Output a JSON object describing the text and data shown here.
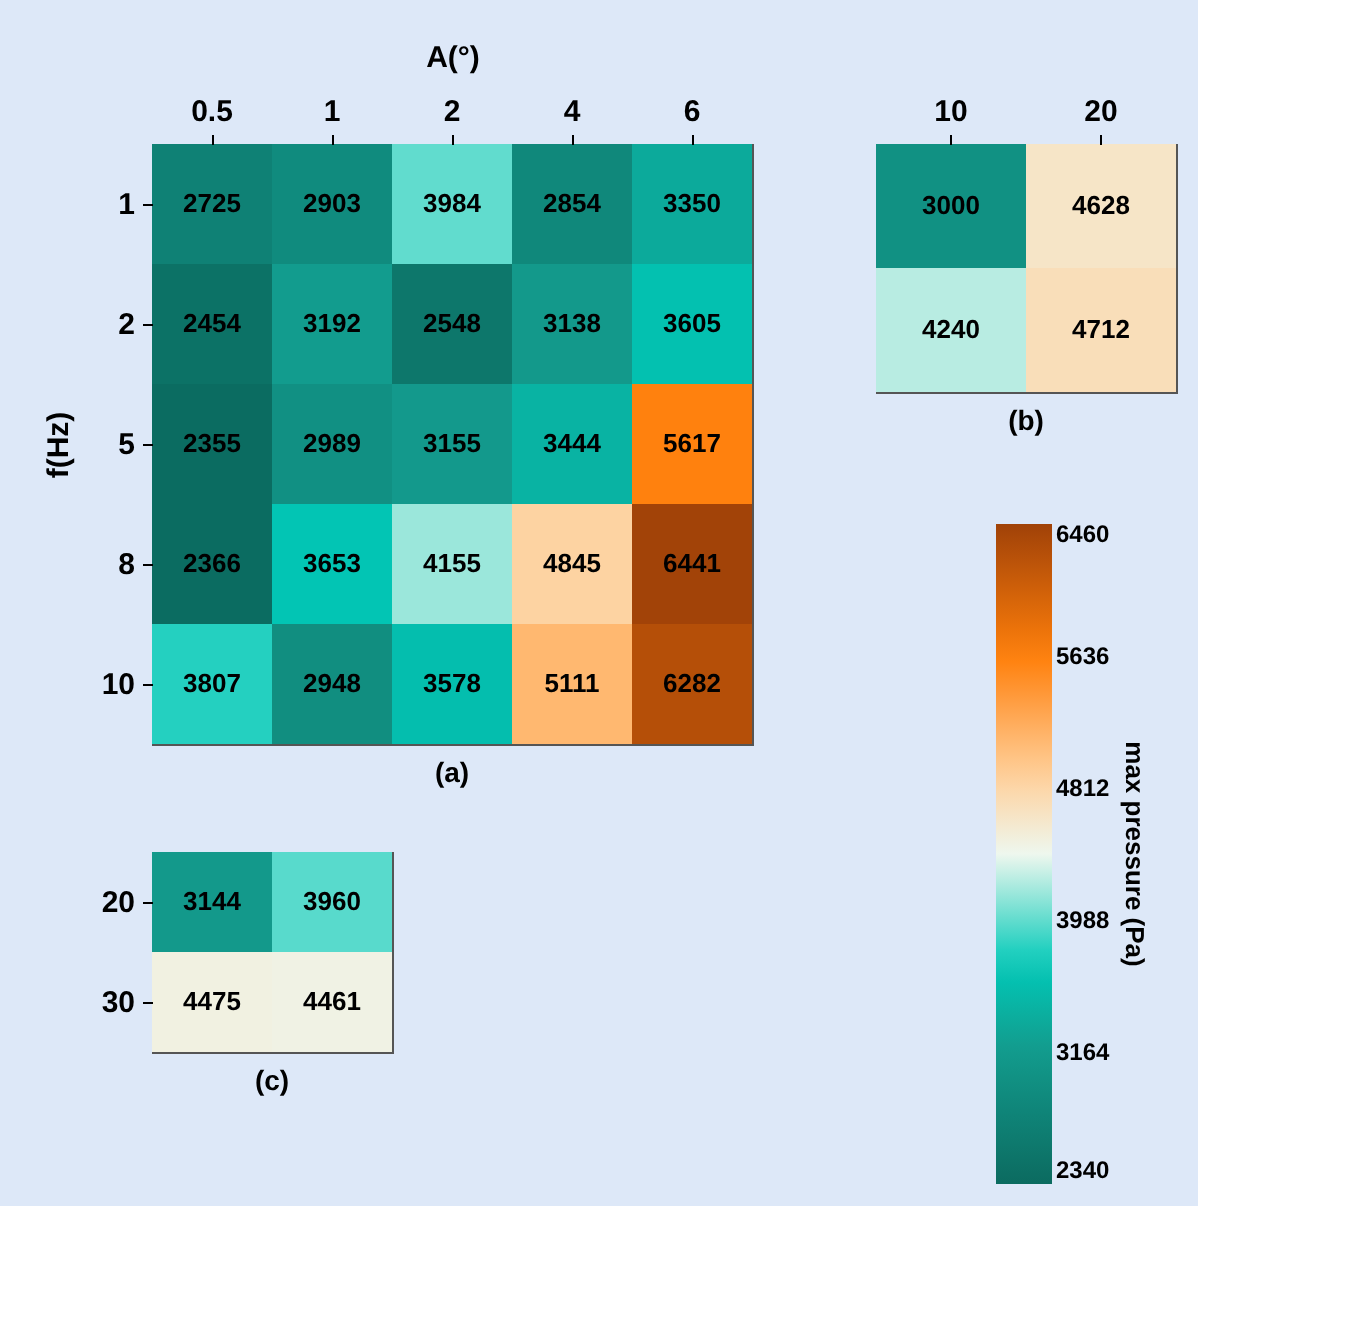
{
  "chart_data": [
    {
      "type": "heatmap",
      "xlabel": "A(°)",
      "ylabel": "f(Hz)",
      "categories": [
        "0.5",
        "1",
        "2",
        "4",
        "6"
      ],
      "y_categories": [
        "1",
        "2",
        "5",
        "8",
        "10"
      ],
      "cells": [
        [
          2725,
          2903,
          3984,
          2854,
          3350
        ],
        [
          2454,
          3192,
          2548,
          3138,
          3605
        ],
        [
          2355,
          2989,
          3155,
          3444,
          5617
        ],
        [
          2366,
          3653,
          4155,
          4845,
          6441
        ],
        [
          3807,
          2948,
          3578,
          5111,
          6282
        ]
      ],
      "data_labels": true,
      "annotations": [
        "(a)"
      ]
    },
    {
      "type": "heatmap",
      "categories": [
        "10",
        "20"
      ],
      "y_categories": [
        "1",
        "2"
      ],
      "cells": [
        [
          3000,
          4628
        ],
        [
          4240,
          4712
        ]
      ],
      "data_labels": true,
      "clim": [
        2340,
        6460
      ],
      "cticks": [
        2340,
        3164,
        3988,
        4812,
        5636,
        6460
      ],
      "clabel": "max  pressure  (Pa)",
      "tick_labels": "x",
      "annotations": [
        "(b)"
      ]
    },
    {
      "type": "heatmap",
      "categories": [
        "0.5",
        "1"
      ],
      "y_categories": [
        "20",
        "30"
      ],
      "cells": [
        [
          3144,
          3960
        ],
        [
          4475,
          4461
        ]
      ],
      "data_labels": true,
      "tick_labels": "y",
      "annotations": [
        "(c)"
      ]
    }
  ]
}
